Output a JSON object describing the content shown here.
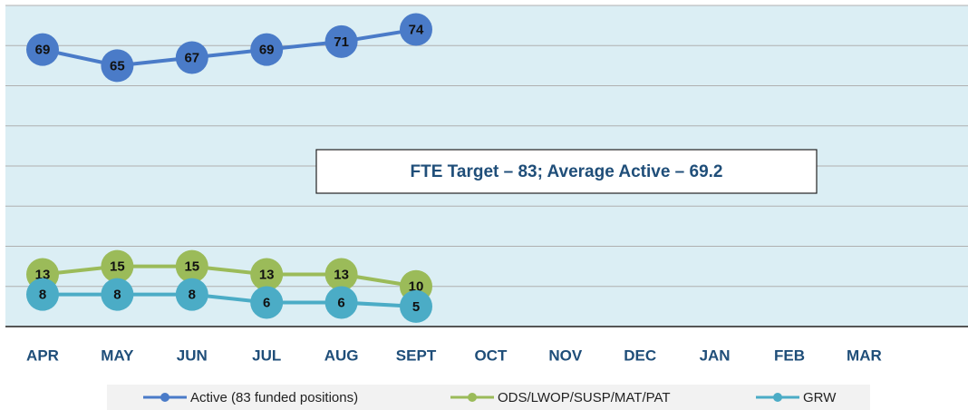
{
  "chart_data": {
    "type": "line",
    "annotation": "FTE Target – 83; Average Active – 69.2",
    "categories": [
      "APR",
      "MAY",
      "JUN",
      "JUL",
      "AUG",
      "SEPT",
      "OCT",
      "NOV",
      "DEC",
      "JAN",
      "FEB",
      "MAR"
    ],
    "series": [
      {
        "name": "Active (83 funded positions)",
        "color": "#4a7bc8",
        "values": [
          69,
          65,
          67,
          69,
          71,
          74,
          null,
          null,
          null,
          null,
          null,
          null
        ]
      },
      {
        "name": "ODS/LWOP/SUSP/MAT/PAT",
        "color": "#9bbb59",
        "values": [
          13,
          15,
          15,
          13,
          13,
          10,
          null,
          null,
          null,
          null,
          null,
          null
        ]
      },
      {
        "name": "GRW",
        "color": "#4bacc6",
        "values": [
          8,
          8,
          8,
          6,
          6,
          5,
          null,
          null,
          null,
          null,
          null,
          null
        ]
      }
    ],
    "ylim": [
      0,
      80
    ],
    "yticks": [
      0,
      10,
      20,
      30,
      40,
      50,
      60,
      70,
      80
    ],
    "grid": true,
    "legend": "bottom"
  }
}
